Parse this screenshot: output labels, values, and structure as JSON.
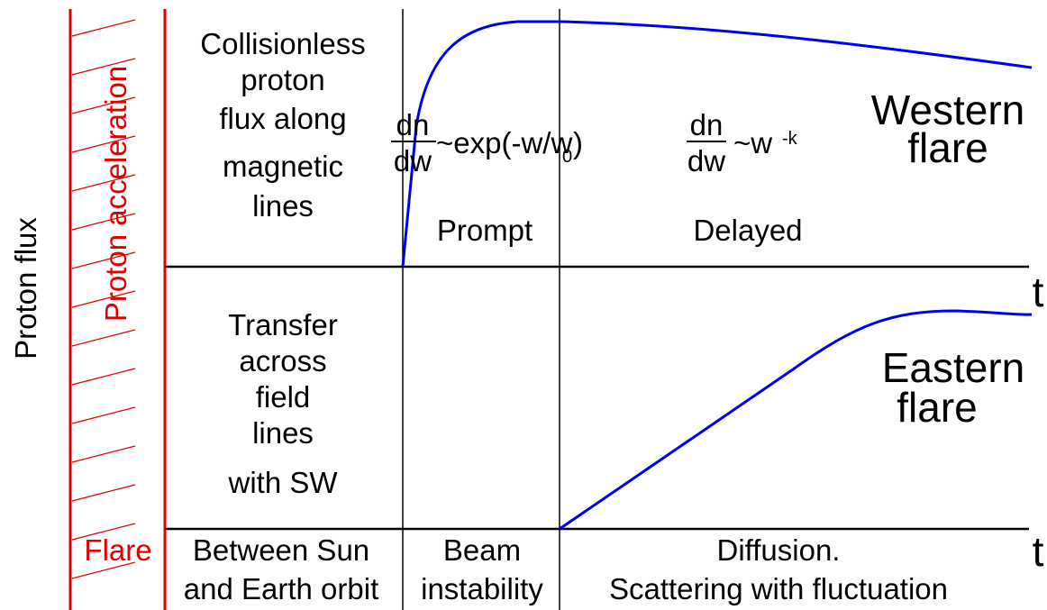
{
  "axis_label": "Proton flux",
  "acceleration_label": "Proton acceleration",
  "flare_label": "Flare",
  "upper_panel": {
    "mechanism": [
      "Collisionless",
      "proton",
      "flux along",
      "magnetic",
      "lines"
    ],
    "prompt_formula": {
      "numerator": "dn",
      "denominator": "dw",
      "body": "~exp(-w/w",
      "subscript": "0",
      "close": ")"
    },
    "delayed_formula": {
      "numerator": "dn",
      "denominator": "dw",
      "body": "~w",
      "superscript": "-k"
    },
    "prompt_label": "Prompt",
    "delayed_label": "Delayed",
    "curve_label": [
      "Western",
      "flare"
    ],
    "time_label": "t"
  },
  "lower_panel": {
    "mechanism": [
      "Transfer",
      "across",
      "field",
      "lines",
      "with SW"
    ],
    "curve_label": [
      "Eastern",
      "flare"
    ],
    "time_label": "t"
  },
  "phases": [
    [
      "Between Sun",
      "and Earth orbit"
    ],
    [
      "Beam",
      "instability"
    ],
    [
      "Diffusion.",
      "Scattering with fluctuation"
    ]
  ]
}
